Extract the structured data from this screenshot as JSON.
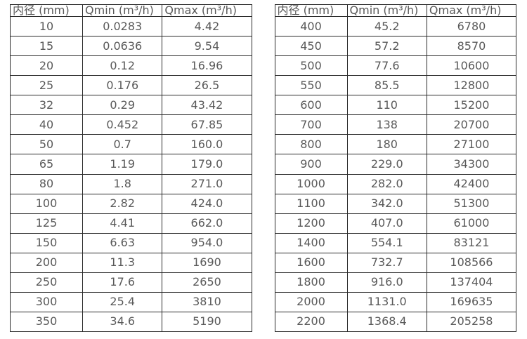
{
  "page": {
    "background_color": "#ffffff",
    "border_color": "#2b2b2b",
    "text_color": "#595959"
  },
  "tables": [
    {
      "name": "small-diameters",
      "headers": [
        "内径 (mm)",
        "Qmin (m³/h)",
        "Qmax (m³/h)"
      ],
      "rows": [
        [
          "10",
          "0.0283",
          "4.42"
        ],
        [
          "15",
          "0.0636",
          "9.54"
        ],
        [
          "20",
          "0.12",
          "16.96"
        ],
        [
          "25",
          "0.176",
          "26.5"
        ],
        [
          "32",
          "0.29",
          "43.42"
        ],
        [
          "40",
          "0.452",
          "67.85"
        ],
        [
          "50",
          "0.7",
          "160.0"
        ],
        [
          "65",
          "1.19",
          "179.0"
        ],
        [
          "80",
          "1.8",
          "271.0"
        ],
        [
          "100",
          "2.82",
          "424.0"
        ],
        [
          "125",
          "4.41",
          "662.0"
        ],
        [
          "150",
          "6.63",
          "954.0"
        ],
        [
          "200",
          "11.3",
          "1690"
        ],
        [
          "250",
          "17.6",
          "2650"
        ],
        [
          "300",
          "25.4",
          "3810"
        ],
        [
          "350",
          "34.6",
          "5190"
        ]
      ]
    },
    {
      "name": "large-diameters",
      "headers": [
        "内径 (mm)",
        "Qmin (m³/h)",
        "Qmax (m³/h)"
      ],
      "rows": [
        [
          "400",
          "45.2",
          "6780"
        ],
        [
          "450",
          "57.2",
          "8570"
        ],
        [
          "500",
          "77.6",
          "10600"
        ],
        [
          "550",
          "85.5",
          "12800"
        ],
        [
          "600",
          "110",
          "15200"
        ],
        [
          "700",
          "138",
          "20700"
        ],
        [
          "800",
          "180",
          "27100"
        ],
        [
          "900",
          "229.0",
          "34300"
        ],
        [
          "1000",
          "282.0",
          "42400"
        ],
        [
          "1100",
          "342.0",
          "51300"
        ],
        [
          "1200",
          "407.0",
          "61000"
        ],
        [
          "1400",
          "554.1",
          "83121"
        ],
        [
          "1600",
          "732.7",
          "108566"
        ],
        [
          "1800",
          "916.0",
          "137404"
        ],
        [
          "2000",
          "1131.0",
          "169635"
        ],
        [
          "2200",
          "1368.4",
          "205258"
        ]
      ]
    }
  ],
  "chart_data": [
    {
      "type": "table",
      "title": "Flow meter diameter vs flow range (small diameters)",
      "columns": [
        "内径 (mm)",
        "Qmin (m³/h)",
        "Qmax (m³/h)"
      ],
      "rows": [
        [
          10,
          0.0283,
          4.42
        ],
        [
          15,
          0.0636,
          9.54
        ],
        [
          20,
          0.12,
          16.96
        ],
        [
          25,
          0.176,
          26.5
        ],
        [
          32,
          0.29,
          43.42
        ],
        [
          40,
          0.452,
          67.85
        ],
        [
          50,
          0.7,
          160.0
        ],
        [
          65,
          1.19,
          179.0
        ],
        [
          80,
          1.8,
          271.0
        ],
        [
          100,
          2.82,
          424.0
        ],
        [
          125,
          4.41,
          662.0
        ],
        [
          150,
          6.63,
          954.0
        ],
        [
          200,
          11.3,
          1690
        ],
        [
          250,
          17.6,
          2650
        ],
        [
          300,
          25.4,
          3810
        ],
        [
          350,
          34.6,
          5190
        ]
      ]
    },
    {
      "type": "table",
      "title": "Flow meter diameter vs flow range (large diameters)",
      "columns": [
        "内径 (mm)",
        "Qmin (m³/h)",
        "Qmax (m³/h)"
      ],
      "rows": [
        [
          400,
          45.2,
          6780
        ],
        [
          450,
          57.2,
          8570
        ],
        [
          500,
          77.6,
          10600
        ],
        [
          550,
          85.5,
          12800
        ],
        [
          600,
          110,
          15200
        ],
        [
          700,
          138,
          20700
        ],
        [
          800,
          180,
          27100
        ],
        [
          900,
          229.0,
          34300
        ],
        [
          1000,
          282.0,
          42400
        ],
        [
          1100,
          342.0,
          51300
        ],
        [
          1200,
          407.0,
          61000
        ],
        [
          1400,
          554.1,
          83121
        ],
        [
          1600,
          732.7,
          108566
        ],
        [
          1800,
          916.0,
          137404
        ],
        [
          2000,
          1131.0,
          169635
        ],
        [
          2200,
          1368.4,
          205258
        ]
      ]
    }
  ]
}
